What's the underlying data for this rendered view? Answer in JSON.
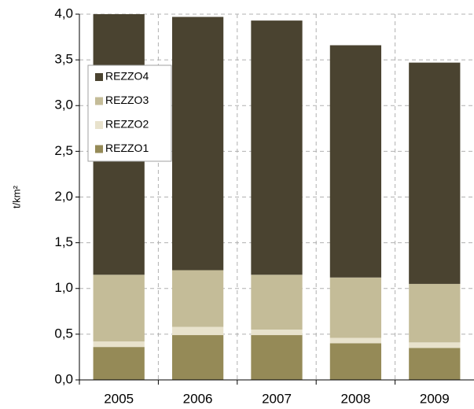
{
  "chart_data": {
    "type": "stacked_bar",
    "ylabel": "t/km²",
    "categories": [
      "2005",
      "2006",
      "2007",
      "2008",
      "2009"
    ],
    "series": [
      {
        "name": "REZZO1",
        "color": "#958a57",
        "values": [
          0.36,
          0.49,
          0.49,
          0.4,
          0.35
        ]
      },
      {
        "name": "REZZO2",
        "color": "#e8e2cc",
        "values": [
          0.06,
          0.09,
          0.06,
          0.06,
          0.06
        ]
      },
      {
        "name": "REZZO3",
        "color": "#c4bc98",
        "values": [
          0.73,
          0.62,
          0.6,
          0.66,
          0.64
        ]
      },
      {
        "name": "REZZO4",
        "color": "#4a4330",
        "values": [
          2.85,
          2.77,
          2.78,
          2.54,
          2.42
        ]
      }
    ],
    "ylim": [
      0,
      4
    ],
    "yticks": [
      {
        "value": 0,
        "label": "0,0"
      },
      {
        "value": 0.5,
        "label": "0,5"
      },
      {
        "value": 1,
        "label": "1,0"
      },
      {
        "value": 1.5,
        "label": "1,5"
      },
      {
        "value": 2,
        "label": "2,0"
      },
      {
        "value": 2.5,
        "label": "2,5"
      },
      {
        "value": 3,
        "label": "3,0"
      },
      {
        "value": 3.5,
        "label": "3,5"
      },
      {
        "value": 4,
        "label": "4,0"
      }
    ],
    "grid": true,
    "legend": "upper-left"
  }
}
